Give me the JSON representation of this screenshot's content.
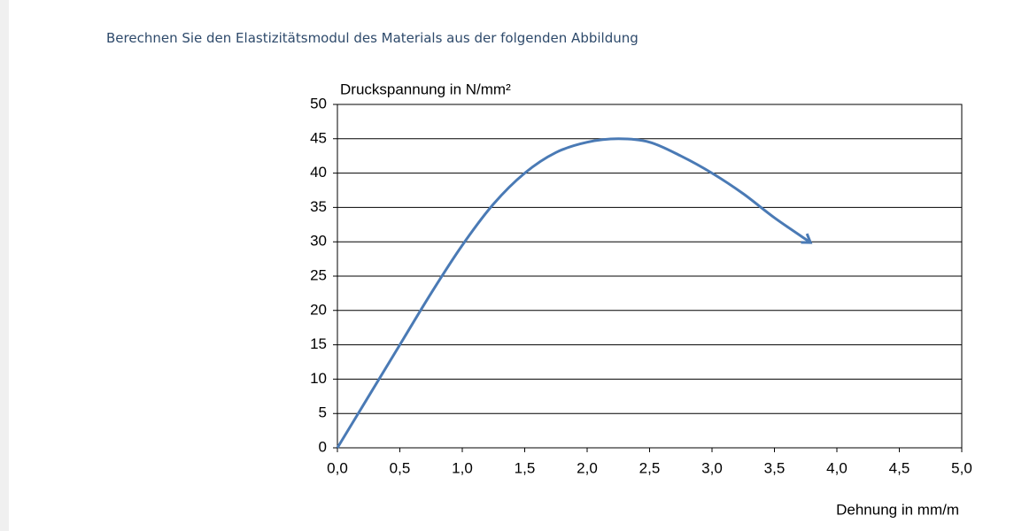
{
  "question": "Berechnen Sie den Elastizitätsmodul des Materials aus der folgenden Abbildung",
  "chart_data": {
    "type": "line",
    "ylabel": "Druckspannung in N/mm²",
    "xlabel": "Dehnung in mm/m",
    "x": [
      0,
      0.25,
      0.5,
      0.75,
      1.0,
      1.25,
      1.5,
      1.75,
      2.0,
      2.25,
      2.5,
      2.75,
      3.0,
      3.25,
      3.5,
      3.78
    ],
    "series": [
      {
        "color": "#4a7ab5",
        "values": [
          0,
          7.5,
          15,
          22.5,
          29.5,
          35.5,
          40,
          43,
          44.5,
          45,
          44.5,
          42.5,
          40,
          37,
          33.5,
          30
        ]
      }
    ],
    "xlim": [
      0,
      5
    ],
    "xticks": [
      {
        "value": 0,
        "label": "0,0"
      },
      {
        "value": 0.5,
        "label": "0,5"
      },
      {
        "value": 1,
        "label": "1,0"
      },
      {
        "value": 1.5,
        "label": "1,5"
      },
      {
        "value": 2,
        "label": "2,0"
      },
      {
        "value": 2.5,
        "label": "2,5"
      },
      {
        "value": 3,
        "label": "3,0"
      },
      {
        "value": 3.5,
        "label": "3,5"
      },
      {
        "value": 4,
        "label": "4,0"
      },
      {
        "value": 4.5,
        "label": "4,5"
      },
      {
        "value": 5,
        "label": "5,0"
      }
    ],
    "ylim": [
      0,
      50
    ],
    "yticks": [
      0,
      5,
      10,
      15,
      20,
      25,
      30,
      35,
      40,
      45,
      50
    ],
    "grid": true
  }
}
